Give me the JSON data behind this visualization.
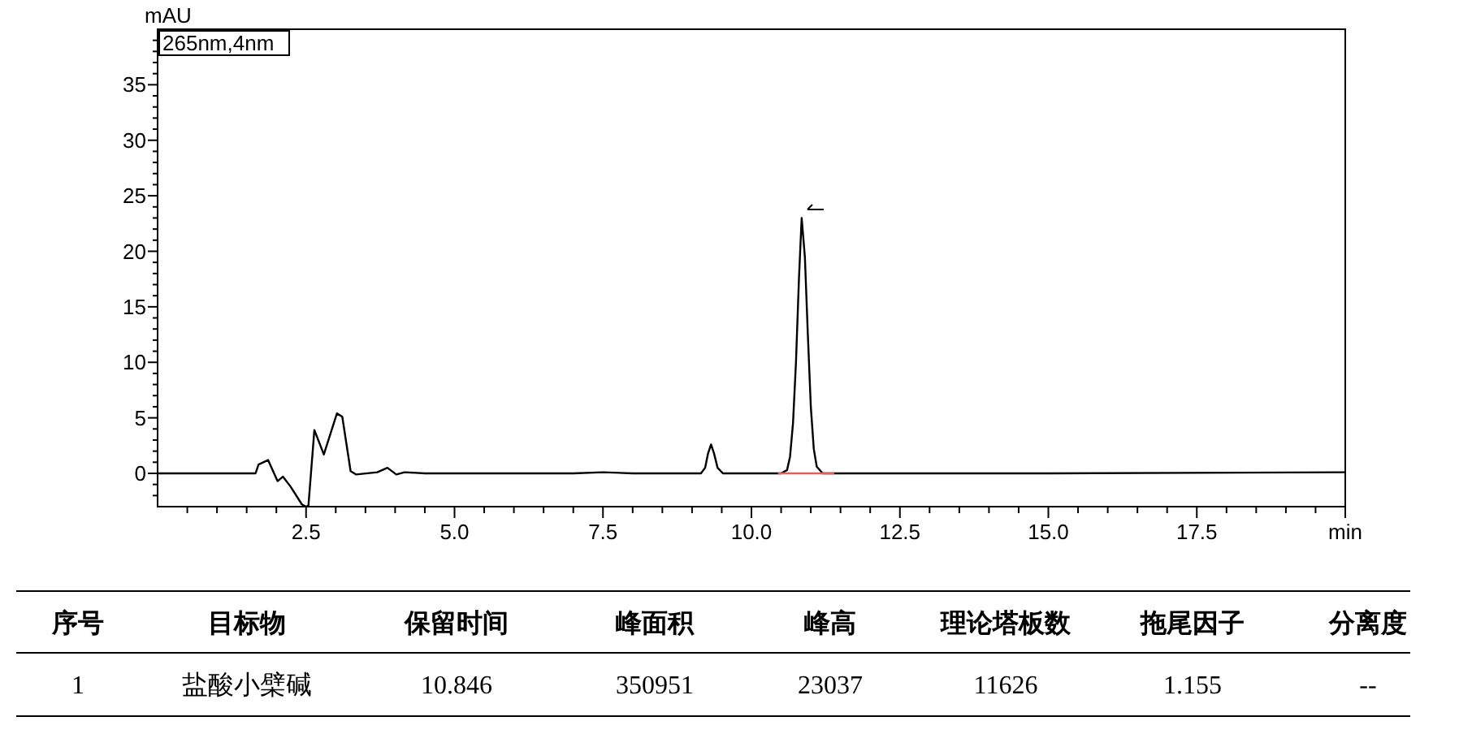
{
  "chart_data": [
    {
      "type": "line",
      "ylabel": "mAU",
      "annotations": [
        "265nm,4nm"
      ],
      "xlim": [
        0,
        20
      ],
      "ylim": [
        -3,
        40
      ],
      "xticks": [
        {
          "value": 0.5,
          "label": null
        },
        {
          "value": 1,
          "label": null
        },
        {
          "value": 1.5,
          "label": null
        },
        {
          "value": 2,
          "label": null
        },
        {
          "value": 2.5,
          "label": "2.5"
        },
        {
          "value": 3,
          "label": null
        },
        {
          "value": 3.5,
          "label": null
        },
        {
          "value": 4,
          "label": null
        },
        {
          "value": 4.5,
          "label": null
        },
        {
          "value": 5,
          "label": "5.0"
        },
        {
          "value": 5.5,
          "label": null
        },
        {
          "value": 6,
          "label": null
        },
        {
          "value": 6.5,
          "label": null
        },
        {
          "value": 7,
          "label": null
        },
        {
          "value": 7.5,
          "label": "7.5"
        },
        {
          "value": 8,
          "label": null
        },
        {
          "value": 8.5,
          "label": null
        },
        {
          "value": 9,
          "label": null
        },
        {
          "value": 9.5,
          "label": null
        },
        {
          "value": 10,
          "label": "10.0"
        },
        {
          "value": 10.5,
          "label": null
        },
        {
          "value": 11,
          "label": null
        },
        {
          "value": 11.5,
          "label": null
        },
        {
          "value": 12,
          "label": null
        },
        {
          "value": 12.5,
          "label": "12.5"
        },
        {
          "value": 13,
          "label": null
        },
        {
          "value": 13.5,
          "label": null
        },
        {
          "value": 14,
          "label": null
        },
        {
          "value": 14.5,
          "label": null
        },
        {
          "value": 15,
          "label": "15.0"
        },
        {
          "value": 15.5,
          "label": null
        },
        {
          "value": 16,
          "label": null
        },
        {
          "value": 16.5,
          "label": null
        },
        {
          "value": 17,
          "label": null
        },
        {
          "value": 17.5,
          "label": "17.5"
        },
        {
          "value": 18,
          "label": null
        },
        {
          "value": 18.5,
          "label": null
        },
        {
          "value": 19,
          "label": null
        },
        {
          "value": 19.5,
          "label": null
        },
        {
          "value": 20,
          "label": "min"
        }
      ],
      "yticks": [
        {
          "value": -2,
          "label": null
        },
        {
          "value": -1,
          "label": null
        },
        0,
        {
          "value": 1,
          "label": null
        },
        {
          "value": 2,
          "label": null
        },
        {
          "value": 3,
          "label": null
        },
        {
          "value": 4,
          "label": null
        },
        5,
        {
          "value": 6,
          "label": null
        },
        {
          "value": 7,
          "label": null
        },
        {
          "value": 8,
          "label": null
        },
        {
          "value": 9,
          "label": null
        },
        10,
        {
          "value": 11,
          "label": null
        },
        {
          "value": 12,
          "label": null
        },
        {
          "value": 13,
          "label": null
        },
        {
          "value": 14,
          "label": null
        },
        15,
        {
          "value": 16,
          "label": null
        },
        {
          "value": 17,
          "label": null
        },
        {
          "value": 18,
          "label": null
        },
        {
          "value": 19,
          "label": null
        },
        20,
        {
          "value": 21,
          "label": null
        },
        {
          "value": 22,
          "label": null
        },
        {
          "value": 23,
          "label": null
        },
        {
          "value": 24,
          "label": null
        },
        25,
        {
          "value": 26,
          "label": null
        },
        {
          "value": 27,
          "label": null
        },
        {
          "value": 28,
          "label": null
        },
        {
          "value": 29,
          "label": null
        },
        30,
        {
          "value": 31,
          "label": null
        },
        {
          "value": 32,
          "label": null
        },
        {
          "value": 33,
          "label": null
        },
        {
          "value": 34,
          "label": null
        },
        35,
        {
          "value": 36,
          "label": null
        },
        {
          "value": 37,
          "label": null
        },
        {
          "value": 38,
          "label": null
        },
        {
          "value": 39,
          "label": null
        }
      ],
      "series": [
        {
          "type": "line",
          "color": "#000000",
          "x": [
            0,
            1.65,
            1.7,
            1.86,
            2.02,
            2.11,
            2.24,
            2.43,
            2.5,
            2.54,
            2.64,
            2.8,
            3.02,
            3.11,
            3.25,
            3.34,
            3.7,
            3.87,
            4.02,
            4.16,
            4.5,
            7,
            7.5,
            8,
            9.15,
            9.22,
            9.27,
            9.32,
            9.37,
            9.43,
            9.52,
            10.5,
            10.6,
            10.65,
            10.7,
            10.75,
            10.8,
            10.846,
            10.9,
            10.95,
            11,
            11.05,
            11.1,
            11.2,
            11.3,
            15,
            20
          ],
          "values": [
            0,
            0,
            0.8,
            1.2,
            -0.7,
            -0.3,
            -1.2,
            -2.8,
            -3,
            -2.9,
            3.9,
            1.7,
            5.4,
            5.1,
            0.2,
            -0.1,
            0.1,
            0.5,
            -0.1,
            0.1,
            0,
            0,
            0.1,
            0,
            0,
            0.5,
            1.8,
            2.6,
            1.8,
            0.5,
            0,
            0,
            0.3,
            1.5,
            4.5,
            10,
            17.5,
            23.0,
            19.5,
            12.5,
            6,
            2.2,
            0.6,
            0,
            0,
            0,
            0.1
          ]
        },
        {
          "type": "line",
          "color": "#e06060",
          "x": [
            10.46,
            11.38
          ],
          "values": [
            0,
            0
          ]
        }
      ]
    },
    {
      "type": "other",
      "categories": [
        "序号",
        "目标物",
        "保留时间",
        "峰面积",
        "峰高",
        "理论塔板数",
        "拖尾因子",
        "分离度"
      ],
      "annotations": [
        "1",
        "盐酸小檗碱",
        "10.846",
        "350951",
        "23037",
        "11626",
        "1.155",
        "--"
      ]
    }
  ]
}
